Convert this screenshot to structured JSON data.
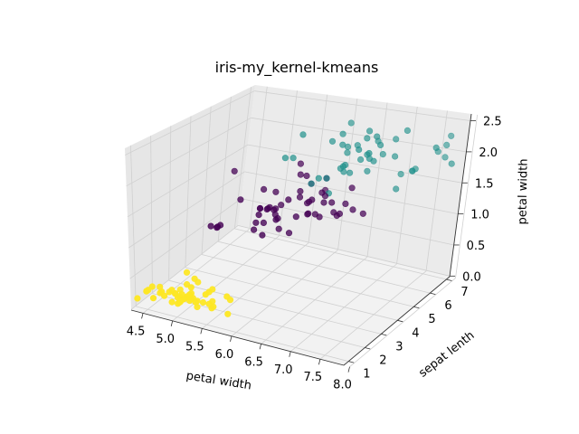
{
  "chart_data": {
    "type": "scatter",
    "projection": "3d",
    "title": "iris-my_kernel-kmeans",
    "xlabel": "petal width",
    "ylabel": "sepat lenth",
    "zlabel": "petal width",
    "xlim": [
      4.3,
      7.9
    ],
    "ylim": [
      1.0,
      6.9
    ],
    "zlim": [
      0.1,
      2.5
    ],
    "x_ticks": [
      "4.5",
      "5.0",
      "5.5",
      "6.0",
      "6.5",
      "7.0",
      "7.5",
      "8.0"
    ],
    "y_ticks": [
      "1",
      "2",
      "3",
      "4",
      "5",
      "6",
      "7"
    ],
    "z_ticks": [
      "0.0",
      "0.5",
      "1.0",
      "1.5",
      "2.0",
      "2.5"
    ],
    "grid": true,
    "colors": {
      "yellow": "#fde725",
      "purple": "#440154",
      "teal": "#21918c"
    },
    "series": [
      {
        "color": "#fde725",
        "points": [
          [
            5.1,
            1.4,
            0.2
          ],
          [
            4.9,
            1.4,
            0.2
          ],
          [
            4.7,
            1.3,
            0.2
          ],
          [
            4.6,
            1.5,
            0.2
          ],
          [
            5.0,
            1.4,
            0.2
          ],
          [
            5.4,
            1.7,
            0.4
          ],
          [
            4.6,
            1.4,
            0.3
          ],
          [
            5.0,
            1.5,
            0.2
          ],
          [
            4.4,
            1.4,
            0.2
          ],
          [
            4.9,
            1.5,
            0.1
          ],
          [
            5.4,
            1.5,
            0.2
          ],
          [
            4.8,
            1.6,
            0.2
          ],
          [
            4.8,
            1.4,
            0.1
          ],
          [
            4.3,
            1.1,
            0.1
          ],
          [
            5.8,
            1.2,
            0.2
          ],
          [
            5.7,
            1.5,
            0.4
          ],
          [
            5.4,
            1.3,
            0.4
          ],
          [
            5.1,
            1.4,
            0.3
          ],
          [
            5.7,
            1.7,
            0.3
          ],
          [
            5.1,
            1.5,
            0.3
          ],
          [
            5.4,
            1.7,
            0.2
          ],
          [
            5.1,
            1.5,
            0.4
          ],
          [
            4.6,
            1.0,
            0.2
          ],
          [
            5.1,
            1.7,
            0.5
          ],
          [
            4.8,
            1.9,
            0.2
          ],
          [
            5.0,
            1.6,
            0.2
          ],
          [
            5.0,
            1.6,
            0.4
          ],
          [
            5.2,
            1.5,
            0.2
          ],
          [
            5.2,
            1.4,
            0.2
          ],
          [
            4.7,
            1.6,
            0.2
          ],
          [
            4.8,
            1.6,
            0.2
          ],
          [
            5.4,
            1.5,
            0.4
          ],
          [
            5.2,
            1.5,
            0.1
          ],
          [
            5.5,
            1.4,
            0.2
          ],
          [
            4.9,
            1.5,
            0.2
          ],
          [
            5.0,
            1.2,
            0.2
          ],
          [
            5.5,
            1.3,
            0.2
          ],
          [
            4.9,
            1.4,
            0.1
          ],
          [
            4.4,
            1.3,
            0.2
          ],
          [
            5.1,
            1.5,
            0.2
          ],
          [
            5.0,
            1.3,
            0.3
          ],
          [
            4.5,
            1.3,
            0.3
          ],
          [
            4.4,
            1.3,
            0.2
          ],
          [
            5.0,
            1.6,
            0.6
          ],
          [
            5.1,
            1.9,
            0.4
          ],
          [
            4.8,
            1.4,
            0.3
          ],
          [
            5.1,
            1.6,
            0.2
          ],
          [
            4.6,
            1.4,
            0.2
          ],
          [
            5.3,
            1.5,
            0.2
          ],
          [
            5.0,
            1.4,
            0.2
          ]
        ]
      },
      {
        "color": "#440154",
        "points": [
          [
            7.0,
            4.7,
            1.4
          ],
          [
            6.4,
            4.5,
            1.5
          ],
          [
            5.5,
            4.0,
            1.3
          ],
          [
            6.5,
            4.6,
            1.5
          ],
          [
            5.7,
            4.5,
            1.3
          ],
          [
            6.3,
            4.7,
            1.6
          ],
          [
            4.9,
            3.3,
            1.0
          ],
          [
            6.6,
            4.6,
            1.3
          ],
          [
            5.2,
            3.9,
            1.4
          ],
          [
            5.0,
            3.5,
            1.0
          ],
          [
            5.9,
            4.2,
            1.5
          ],
          [
            6.0,
            4.0,
            1.0
          ],
          [
            6.1,
            4.7,
            1.4
          ],
          [
            5.6,
            3.6,
            1.3
          ],
          [
            6.7,
            4.4,
            1.4
          ],
          [
            5.6,
            4.5,
            1.5
          ],
          [
            5.8,
            4.1,
            1.0
          ],
          [
            6.2,
            4.5,
            1.5
          ],
          [
            5.6,
            3.9,
            1.1
          ],
          [
            5.9,
            4.8,
            1.8
          ],
          [
            6.1,
            4.0,
            1.3
          ],
          [
            6.3,
            4.9,
            1.5
          ],
          [
            6.1,
            4.7,
            1.2
          ],
          [
            6.4,
            4.3,
            1.3
          ],
          [
            6.6,
            4.4,
            1.4
          ],
          [
            6.8,
            4.8,
            1.4
          ],
          [
            6.7,
            5.0,
            1.7
          ],
          [
            6.0,
            4.5,
            1.5
          ],
          [
            5.7,
            3.5,
            1.0
          ],
          [
            5.5,
            3.8,
            1.1
          ],
          [
            5.5,
            3.7,
            1.0
          ],
          [
            5.8,
            3.9,
            1.2
          ],
          [
            6.0,
            5.1,
            1.6
          ],
          [
            5.4,
            4.5,
            1.5
          ],
          [
            6.0,
            4.5,
            1.6
          ],
          [
            6.7,
            4.7,
            1.5
          ],
          [
            6.3,
            4.4,
            1.3
          ],
          [
            5.6,
            4.1,
            1.3
          ],
          [
            5.5,
            4.0,
            1.3
          ],
          [
            5.5,
            4.4,
            1.2
          ],
          [
            6.1,
            4.6,
            1.4
          ],
          [
            5.8,
            4.0,
            1.2
          ],
          [
            5.0,
            3.3,
            1.0
          ],
          [
            5.6,
            4.2,
            1.3
          ],
          [
            5.7,
            4.2,
            1.2
          ],
          [
            5.7,
            4.2,
            1.3
          ],
          [
            6.2,
            4.3,
            1.3
          ],
          [
            5.1,
            3.0,
            1.1
          ],
          [
            5.7,
            4.1,
            1.3
          ],
          [
            4.9,
            4.5,
            1.7
          ],
          [
            5.8,
            5.1,
            1.9
          ],
          [
            6.3,
            4.9,
            1.8
          ],
          [
            6.0,
            4.8,
            1.8
          ],
          [
            6.1,
            5.6,
            1.4
          ]
        ]
      },
      {
        "color": "#21918c",
        "points": [
          [
            6.3,
            6.0,
            2.5
          ],
          [
            7.1,
            5.9,
            2.1
          ],
          [
            6.5,
            5.8,
            2.2
          ],
          [
            7.6,
            6.6,
            2.1
          ],
          [
            7.3,
            6.3,
            1.8
          ],
          [
            6.7,
            5.8,
            1.8
          ],
          [
            7.2,
            6.1,
            2.5
          ],
          [
            6.4,
            5.3,
            1.9
          ],
          [
            6.8,
            5.5,
            2.1
          ],
          [
            5.7,
            5.0,
            2.0
          ],
          [
            5.8,
            5.1,
            2.4
          ],
          [
            6.4,
            5.3,
            2.3
          ],
          [
            6.5,
            5.5,
            1.8
          ],
          [
            7.7,
            6.7,
            2.2
          ],
          [
            7.7,
            6.9,
            2.3
          ],
          [
            6.9,
            5.7,
            2.3
          ],
          [
            5.6,
            4.9,
            2.0
          ],
          [
            7.7,
            6.7,
            2.0
          ],
          [
            6.3,
            4.9,
            1.8
          ],
          [
            6.7,
            5.7,
            2.1
          ],
          [
            7.2,
            6.0,
            1.8
          ],
          [
            6.2,
            4.8,
            1.8
          ],
          [
            6.4,
            5.6,
            2.1
          ],
          [
            7.2,
            5.8,
            1.6
          ],
          [
            7.4,
            6.1,
            1.9
          ],
          [
            7.9,
            6.4,
            2.0
          ],
          [
            6.4,
            5.6,
            2.2
          ],
          [
            6.3,
            5.1,
            1.5
          ],
          [
            7.7,
            6.1,
            2.3
          ],
          [
            6.3,
            5.6,
            2.4
          ],
          [
            6.4,
            5.5,
            1.8
          ],
          [
            6.9,
            5.4,
            2.1
          ],
          [
            6.7,
            5.6,
            2.4
          ],
          [
            6.9,
            5.1,
            2.3
          ],
          [
            6.8,
            5.9,
            2.3
          ],
          [
            6.7,
            5.7,
            2.5
          ],
          [
            6.7,
            5.2,
            2.3
          ],
          [
            6.5,
            5.2,
            2.0
          ],
          [
            6.2,
            5.4,
            2.3
          ],
          [
            6.5,
            5.1,
            2.0
          ],
          [
            7.3,
            6.3,
            1.8
          ],
          [
            6.6,
            5.7,
            2.0
          ],
          [
            6.9,
            5.9,
            2.1
          ],
          [
            7.0,
            6.2,
            2.3
          ],
          [
            6.8,
            5.8,
            2.4
          ],
          [
            6.0,
            5.1,
            1.6
          ]
        ]
      }
    ]
  }
}
